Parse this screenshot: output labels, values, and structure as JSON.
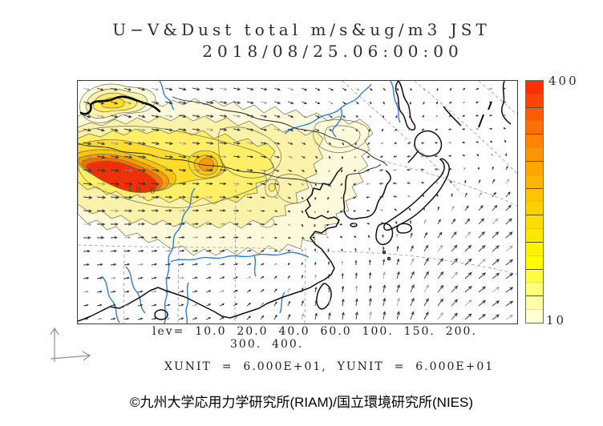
{
  "title": {
    "line1": "U−V&Dust total m/s&ug/m3 JST",
    "line2": "2018/08/25.06:00:00"
  },
  "colorbar": {
    "max_label": "400",
    "min_label": "10",
    "colors": [
      "#ff3000",
      "#ff4400",
      "#ff5c00",
      "#ff7000",
      "#ff8400",
      "#ff9600",
      "#ffa600",
      "#ffb400",
      "#ffc300",
      "#ffd100",
      "#ffdd00",
      "#ffe800",
      "#fff200",
      "#fffb00",
      "#ffff40",
      "#ffff78",
      "#ffffaa",
      "#ffffd2"
    ]
  },
  "legend": {
    "levels_line1": "lev=  10.0  20.0  40.0  60.0  100.  150.  200.",
    "levels_line2": "300.  400.",
    "units_line": "XUNIT  =  6.000E+01,  YUNIT  =  6.000E+01"
  },
  "footer": {
    "copyright": "©九州大学応用力学研究所(RIAM)/国立環境研究所(NIES)"
  },
  "map": {
    "contour_label": "10.0",
    "river_color": "#2e7cdb",
    "coast_color": "#101010",
    "border_color": "#222222",
    "grid_color": "#9a9a9a",
    "arrow_color": "#333333",
    "arrow_color_light": "#8f8f8f",
    "contour_line_color": "#6f6f4a",
    "palette": {
      "lv10": "#fdfadb",
      "lv20": "#faf2ab",
      "lv40": "#ffee66",
      "lv60": "#ffdc2a",
      "lv100": "#ffc30b",
      "lv150": "#ff9b00",
      "lv200": "#ff6c00",
      "lv300": "#ff3800"
    }
  },
  "chart_data": {
    "type": "heatmap",
    "title": "U−V&Dust total m/s&ug/m3 JST",
    "subtitle": "2018/08/25.06:00:00",
    "description": "Filled-contour map of total dust concentration (ug/m3) with U-V wind vectors (m/s) over East Asia",
    "contour_levels": [
      10.0,
      20.0,
      40.0,
      60.0,
      100,
      150,
      200,
      300,
      400
    ],
    "colorbar_range": [
      10,
      400
    ],
    "colorbar_orientation": "vertical-right",
    "vector_units": {
      "XUNIT": "6.000E+01",
      "YUNIT": "6.000E+01"
    },
    "valid_time": "2018/08/25 06:00:00 JST",
    "max_concentration_region": "western desert source area, core exceeding 400 ug/m3",
    "secondary_maximum": "central plume core near 150-200 ug/m3",
    "wind_features": [
      "easterly transport across dust plume in west",
      "westerly flow north of Japan",
      "cyclonic (northeastward/northward) flow south of Japan"
    ]
  }
}
